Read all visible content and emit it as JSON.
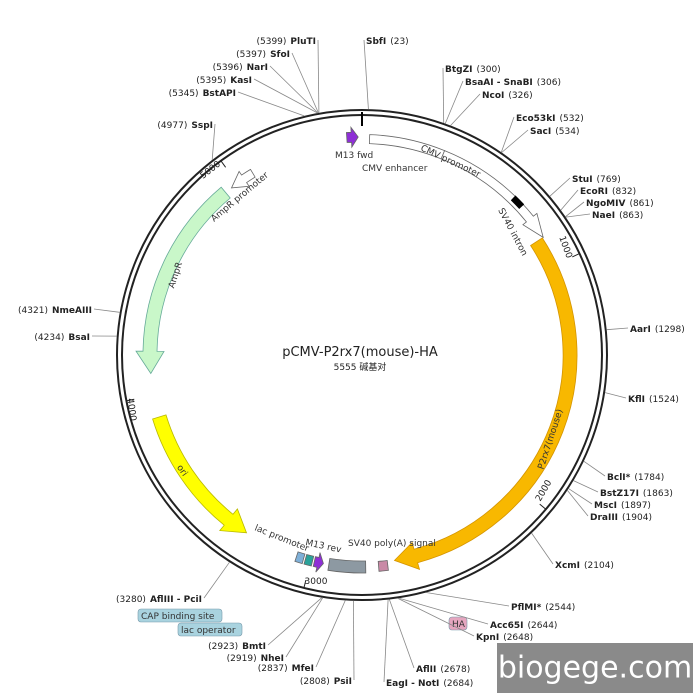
{
  "title": "pCMV-P2rx7(mouse)-HA",
  "subtitle": "5555 碱基对",
  "sites": [
    {
      "name": "PluTI",
      "position": "(5399)"
    },
    {
      "name": "SfoI",
      "position": "(5397)"
    },
    {
      "name": "NarI",
      "position": "(5396)"
    },
    {
      "name": "KasI",
      "position": "(5395)"
    },
    {
      "name": "BstAPI",
      "position": "(5345)"
    },
    {
      "name": "SspI",
      "position": "(4977)"
    },
    {
      "name": "SbfI",
      "position": "(23)"
    },
    {
      "name": "BtgZI",
      "position": "(300)"
    },
    {
      "name": "BsaAI - SnaBI",
      "position": "(306)"
    },
    {
      "name": "NcoI",
      "position": "(326)"
    },
    {
      "name": "Eco53kI",
      "position": "(532)"
    },
    {
      "name": "SacI",
      "position": "(534)"
    },
    {
      "name": "StuI",
      "position": "(769)"
    },
    {
      "name": "EcoRI",
      "position": "(832)"
    },
    {
      "name": "NgoMIV",
      "position": "(861)"
    },
    {
      "name": "NaeI",
      "position": "(863)"
    },
    {
      "name": "AarI",
      "position": "(1298)"
    },
    {
      "name": "KflI",
      "position": "(1524)"
    },
    {
      "name": "BclI*",
      "position": "(1784)"
    },
    {
      "name": "BstZ17I",
      "position": "(1863)"
    },
    {
      "name": "MscI",
      "position": "(1897)"
    },
    {
      "name": "DraIII",
      "position": "(1904)"
    },
    {
      "name": "XcmI",
      "position": "(2104)"
    },
    {
      "name": "PflMI*",
      "position": "(2544)"
    },
    {
      "name": "Acc65I",
      "position": "(2644)"
    },
    {
      "name": "KpnI",
      "position": "(2648)"
    },
    {
      "name": "AflII",
      "position": "(2678)"
    },
    {
      "name": "EagI - NotI",
      "position": "(2684)"
    },
    {
      "name": "PsiI",
      "position": "(2808)"
    },
    {
      "name": "MfeI",
      "position": "(2837)"
    },
    {
      "name": "NheI",
      "position": "(2919)"
    },
    {
      "name": "BmtI",
      "position": "(2923)"
    },
    {
      "name": "AflIII - PciI",
      "position": "(3280)"
    },
    {
      "name": "NmeAIII",
      "position": "(4321)"
    },
    {
      "name": "BsaI",
      "position": "(4234)"
    }
  ],
  "features": [
    "M13 fwd",
    "CMV enhancer",
    "CMV promoter",
    "SV40 intron",
    "P2rx7(mouse)",
    "SV40 poly(A) signal",
    "HA",
    "M13 rev",
    "lac promoter",
    "CAP binding site",
    "lac operator",
    "ori",
    "AmpR",
    "AmpR promoter"
  ],
  "ticks": [
    "1000",
    "2000",
    "3000",
    "4000",
    "5000"
  ],
  "watermark": "biogege.com"
}
